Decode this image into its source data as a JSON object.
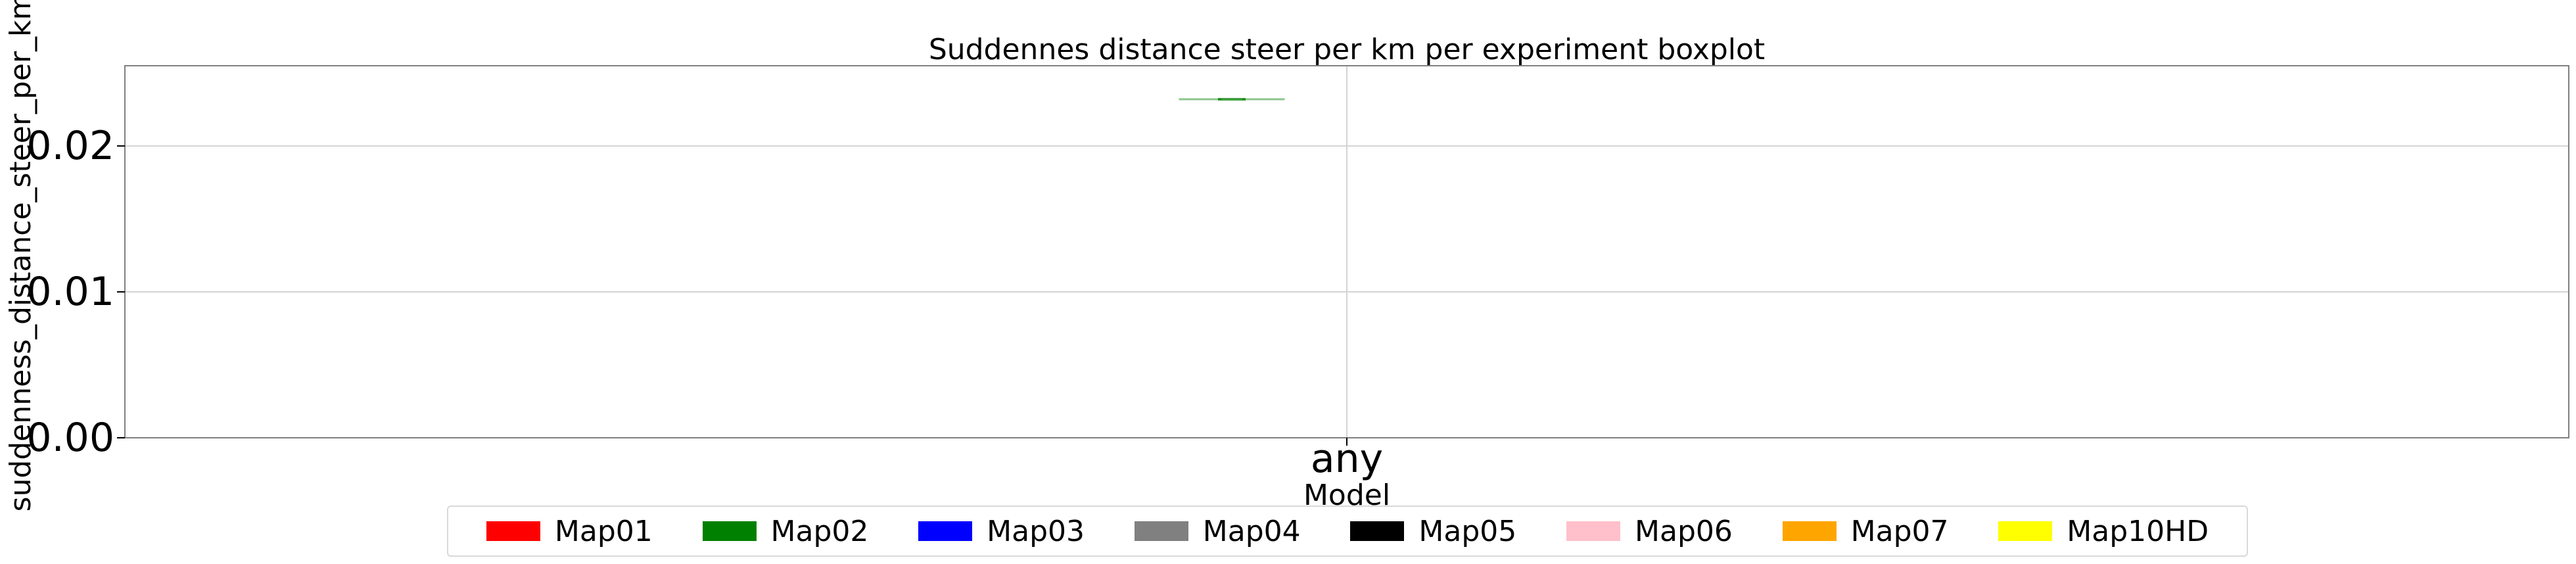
{
  "chart_data": {
    "type": "box",
    "title": "Suddennes distance steer per km per experiment boxplot",
    "xlabel": "Model",
    "ylabel": "suddenness_distance_steer_per_km",
    "categories": [
      "any"
    ],
    "ylim": [
      0,
      0.0255
    ],
    "yticks": [
      0.0,
      0.01,
      0.02
    ],
    "ytick_labels": [
      "0.00",
      "0.01",
      "0.02"
    ],
    "grid": true,
    "legend_position": "bottom-center",
    "series": [
      {
        "name": "Map01",
        "color": "#ff0000",
        "median": null
      },
      {
        "name": "Map02",
        "color": "#008000",
        "median": 0.0232
      },
      {
        "name": "Map03",
        "color": "#0000ff",
        "median": null
      },
      {
        "name": "Map04",
        "color": "#808080",
        "median": null
      },
      {
        "name": "Map05",
        "color": "#000000",
        "median": null
      },
      {
        "name": "Map06",
        "color": "#ffc0cb",
        "median": null
      },
      {
        "name": "Map07",
        "color": "#ffa500",
        "median": null
      },
      {
        "name": "Map10HD",
        "color": "#ffff00",
        "median": null
      }
    ]
  }
}
